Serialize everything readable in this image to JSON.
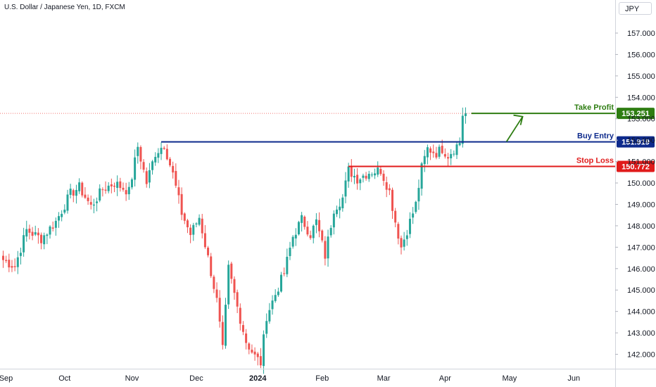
{
  "chart_data": {
    "type": "candlestick",
    "title": "U.S. Dollar / Japanese Yen, 1D, FXCM",
    "currency": "JPY",
    "y_ticks": [
      "157.000",
      "156.000",
      "155.000",
      "154.000",
      "153.000",
      "152.000",
      "151.000",
      "150.000",
      "149.000",
      "148.000",
      "147.000",
      "146.000",
      "145.000",
      "144.000",
      "143.000",
      "142.000"
    ],
    "ylim": [
      141.35,
      157.7
    ],
    "x_ticks": [
      {
        "label": "Sep",
        "index": 0
      },
      {
        "label": "Oct",
        "index": 21
      },
      {
        "label": "Nov",
        "index": 44
      },
      {
        "label": "Dec",
        "index": 66
      },
      {
        "label": "2024",
        "index": 87
      },
      {
        "label": "Feb",
        "index": 109
      },
      {
        "label": "Mar",
        "index": 130
      },
      {
        "label": "Apr",
        "index": 151
      },
      {
        "label": "May",
        "index": 173
      },
      {
        "label": "Jun",
        "index": 195
      }
    ],
    "last_price": 153.251,
    "levels": [
      {
        "name": "Take Profit",
        "value": "153.251",
        "price": 153.251,
        "start_index": 160,
        "color": "#2e7d12"
      },
      {
        "name": "Buy Entry",
        "value": "151.919",
        "price": 151.919,
        "start_index": 54,
        "color": "#0d2a8c"
      },
      {
        "name": "Stop Loss",
        "value": "150.772",
        "price": 150.772,
        "start_index": 118,
        "color": "#e01b1b"
      }
    ],
    "anchors": [
      [
        0,
        146.4
      ],
      [
        4,
        146.1
      ],
      [
        8,
        147.8
      ],
      [
        13,
        147.4
      ],
      [
        18,
        148.2
      ],
      [
        23,
        149.5
      ],
      [
        26,
        149.8
      ],
      [
        30,
        148.9
      ],
      [
        34,
        149.7
      ],
      [
        38,
        150.0
      ],
      [
        43,
        149.6
      ],
      [
        46,
        151.7
      ],
      [
        49,
        150.0
      ],
      [
        52,
        151.4
      ],
      [
        55,
        151.8
      ],
      [
        58,
        150.4
      ],
      [
        61,
        148.6
      ],
      [
        64,
        147.6
      ],
      [
        67,
        148.4
      ],
      [
        70,
        146.5
      ],
      [
        73,
        144.5
      ],
      [
        75,
        142.2
      ],
      [
        77,
        146.0
      ],
      [
        80,
        144.2
      ],
      [
        83,
        142.6
      ],
      [
        86,
        141.9
      ],
      [
        88,
        141.6
      ],
      [
        90,
        143.8
      ],
      [
        93,
        144.8
      ],
      [
        96,
        145.8
      ],
      [
        99,
        147.5
      ],
      [
        102,
        148.3
      ],
      [
        105,
        147.6
      ],
      [
        107,
        148.2
      ],
      [
        110,
        146.6
      ],
      [
        113,
        148.8
      ],
      [
        116,
        149.3
      ],
      [
        118,
        150.6
      ],
      [
        121,
        150.2
      ],
      [
        125,
        150.5
      ],
      [
        129,
        150.6
      ],
      [
        132,
        149.6
      ],
      [
        134,
        148.2
      ],
      [
        136,
        147.0
      ],
      [
        138,
        147.8
      ],
      [
        141,
        149.0
      ],
      [
        143,
        150.7
      ],
      [
        145,
        151.6
      ],
      [
        148,
        151.4
      ],
      [
        150,
        151.6
      ],
      [
        152,
        151.3
      ],
      [
        154,
        151.6
      ],
      [
        156,
        151.9
      ],
      [
        157,
        153.2
      ],
      [
        158,
        153.25
      ]
    ]
  }
}
